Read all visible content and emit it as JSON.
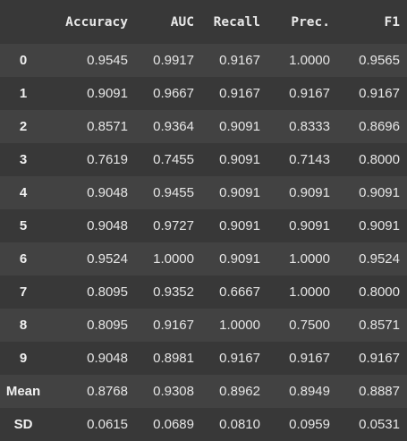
{
  "table": {
    "columns": [
      "Accuracy",
      "AUC",
      "Recall",
      "Prec.",
      "F1"
    ],
    "rows": [
      {
        "index": "0",
        "values": [
          "0.9545",
          "0.9917",
          "0.9167",
          "1.0000",
          "0.9565"
        ]
      },
      {
        "index": "1",
        "values": [
          "0.9091",
          "0.9667",
          "0.9167",
          "0.9167",
          "0.9167"
        ]
      },
      {
        "index": "2",
        "values": [
          "0.8571",
          "0.9364",
          "0.9091",
          "0.8333",
          "0.8696"
        ]
      },
      {
        "index": "3",
        "values": [
          "0.7619",
          "0.7455",
          "0.9091",
          "0.7143",
          "0.8000"
        ]
      },
      {
        "index": "4",
        "values": [
          "0.9048",
          "0.9455",
          "0.9091",
          "0.9091",
          "0.9091"
        ]
      },
      {
        "index": "5",
        "values": [
          "0.9048",
          "0.9727",
          "0.9091",
          "0.9091",
          "0.9091"
        ]
      },
      {
        "index": "6",
        "values": [
          "0.9524",
          "1.0000",
          "0.9091",
          "1.0000",
          "0.9524"
        ]
      },
      {
        "index": "7",
        "values": [
          "0.8095",
          "0.9352",
          "0.6667",
          "1.0000",
          "0.8000"
        ]
      },
      {
        "index": "8",
        "values": [
          "0.8095",
          "0.9167",
          "1.0000",
          "0.7500",
          "0.8571"
        ]
      },
      {
        "index": "9",
        "values": [
          "0.9048",
          "0.8981",
          "0.9167",
          "0.9167",
          "0.9167"
        ]
      },
      {
        "index": "Mean",
        "values": [
          "0.8768",
          "0.9308",
          "0.8962",
          "0.8949",
          "0.8887"
        ]
      },
      {
        "index": "SD",
        "values": [
          "0.0615",
          "0.0689",
          "0.0810",
          "0.0959",
          "0.0531"
        ]
      }
    ]
  },
  "colors": {
    "background": "#383838",
    "row_stripe": "#424242",
    "text": "#e6e6e6"
  }
}
